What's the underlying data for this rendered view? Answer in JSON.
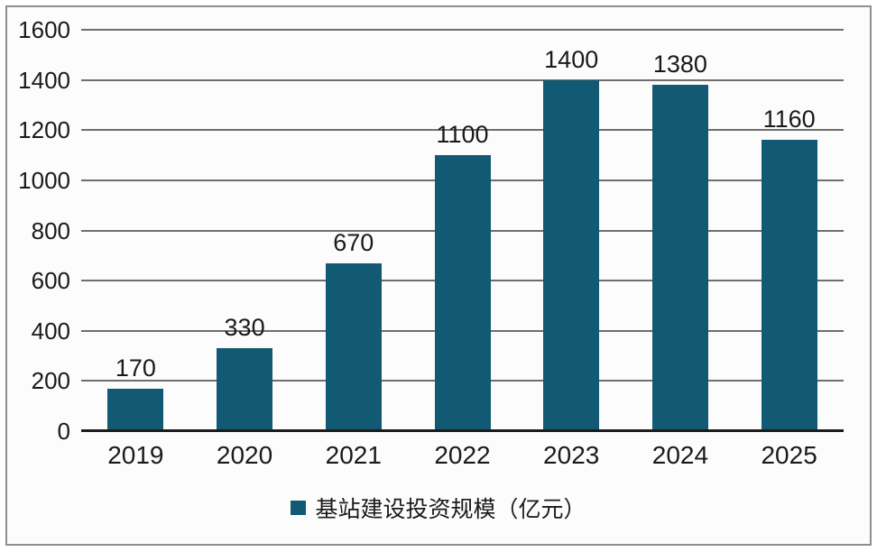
{
  "chart_data": {
    "type": "bar",
    "title": "",
    "xlabel": "",
    "ylabel": "",
    "categories": [
      "2019",
      "2020",
      "2021",
      "2022",
      "2023",
      "2024",
      "2025"
    ],
    "values": [
      170,
      330,
      670,
      1100,
      1400,
      1380,
      1160
    ],
    "series": [
      {
        "name": "基站建设投资规模（亿元）",
        "values": [
          170,
          330,
          670,
          1100,
          1400,
          1380,
          1160
        ]
      }
    ],
    "legend": "基站建设投资规模（亿元）",
    "legend_position": "bottom-center",
    "ylim": [
      0,
      1600
    ],
    "ytick_step": 200,
    "yticks": [
      0,
      200,
      400,
      600,
      800,
      1000,
      1200,
      1400,
      1600
    ],
    "grid": "horizontal",
    "data_labels_shown": true,
    "colors": {
      "bar": "#125A73",
      "gridline": "#6E6E6E",
      "axis": "#1C1C1C",
      "text": "#1A1A1A",
      "plot_background": "#FCFCFC",
      "frame_border": "#8F8F8F"
    }
  }
}
